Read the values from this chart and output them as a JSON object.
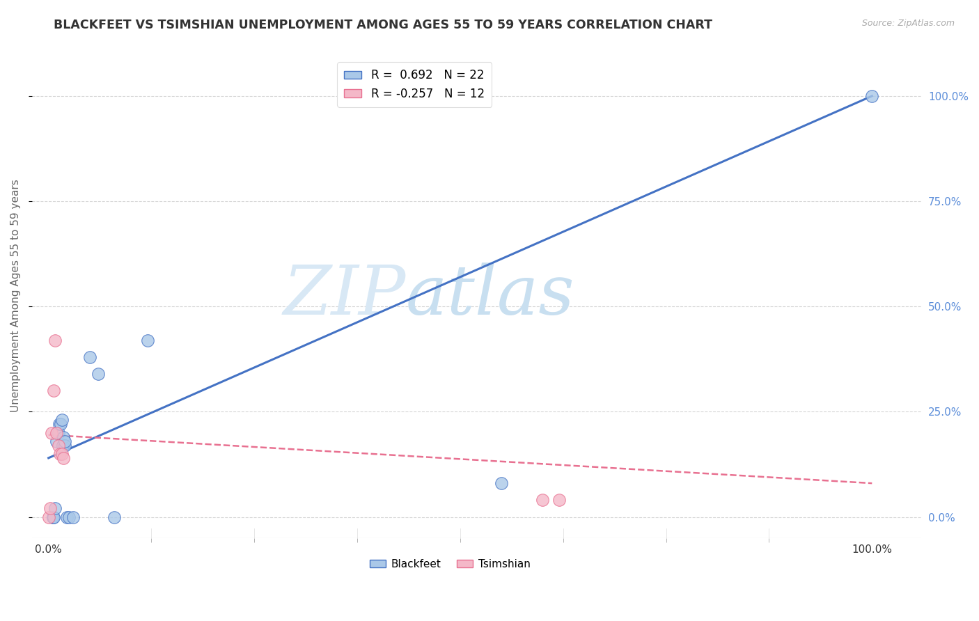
{
  "title": "BLACKFEET VS TSIMSHIAN UNEMPLOYMENT AMONG AGES 55 TO 59 YEARS CORRELATION CHART",
  "source": "Source: ZipAtlas.com",
  "ylabel": "Unemployment Among Ages 55 to 59 years",
  "watermark_text": "ZIP",
  "watermark_text2": "atlas",
  "blackfeet_R": 0.692,
  "blackfeet_N": 22,
  "tsimshian_R": -0.257,
  "tsimshian_N": 12,
  "blackfeet_color": "#aac8e8",
  "blackfeet_line_color": "#4472c4",
  "tsimshian_color": "#f4b8c8",
  "tsimshian_line_color": "#e87090",
  "blackfeet_x": [
    0.005,
    0.005,
    0.006,
    0.008,
    0.01,
    0.012,
    0.013,
    0.015,
    0.016,
    0.017,
    0.018,
    0.02,
    0.02,
    0.022,
    0.025,
    0.03,
    0.05,
    0.06,
    0.08,
    0.12,
    0.55,
    1.0
  ],
  "blackfeet_y": [
    0.0,
    0.0,
    0.0,
    0.02,
    0.18,
    0.2,
    0.22,
    0.22,
    0.23,
    0.17,
    0.19,
    0.17,
    0.18,
    0.0,
    0.0,
    0.0,
    0.38,
    0.34,
    0.0,
    0.42,
    0.08,
    1.0
  ],
  "tsimshian_x": [
    0.0,
    0.002,
    0.004,
    0.006,
    0.008,
    0.01,
    0.012,
    0.014,
    0.016,
    0.018,
    0.6,
    0.62
  ],
  "tsimshian_y": [
    0.0,
    0.02,
    0.2,
    0.3,
    0.42,
    0.2,
    0.17,
    0.15,
    0.15,
    0.14,
    0.04,
    0.04
  ],
  "blue_line_x0": 0.0,
  "blue_line_y0": 0.14,
  "blue_line_x1": 1.0,
  "blue_line_y1": 1.0,
  "pink_line_x0": 0.0,
  "pink_line_y0": 0.195,
  "pink_line_x1": 1.0,
  "pink_line_y1": 0.08,
  "xlim": [
    -0.02,
    1.06
  ],
  "ylim": [
    -0.05,
    1.1
  ],
  "x_tick_positions": [
    0.0,
    1.0
  ],
  "x_tick_labels": [
    "0.0%",
    "100.0%"
  ],
  "y_tick_positions": [
    0.0,
    0.25,
    0.5,
    0.75,
    1.0
  ],
  "y_tick_labels_right": [
    "0.0%",
    "25.0%",
    "50.0%",
    "75.0%",
    "100.0%"
  ],
  "x_minor_ticks": [
    0.125,
    0.25,
    0.375,
    0.5,
    0.625,
    0.75,
    0.875
  ],
  "marker_size": 160,
  "background_color": "#ffffff",
  "grid_color": "#cccccc",
  "title_fontsize": 12.5,
  "label_fontsize": 11,
  "tick_fontsize": 11,
  "right_tick_color": "#5b8dd9",
  "watermark_color_zip": "#d8e8f5",
  "watermark_color_atlas": "#c8dff0"
}
